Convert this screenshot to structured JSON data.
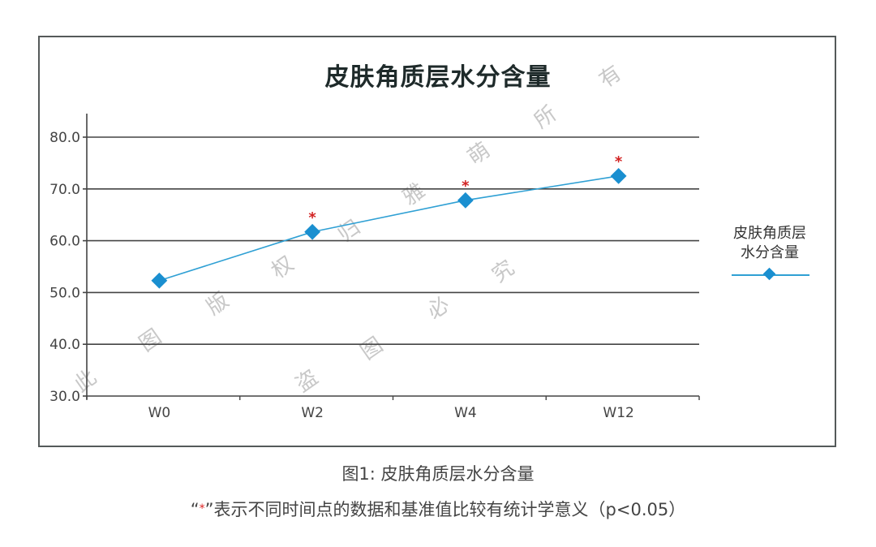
{
  "chart_data": {
    "type": "line",
    "title": "皮肤角质层水分含量",
    "categories": [
      "W0",
      "W2",
      "W4",
      "W12"
    ],
    "series": [
      {
        "name": "皮肤角质层水分含量",
        "values": [
          52.3,
          61.7,
          67.8,
          72.5
        ],
        "color": "#1a8fd0",
        "marker": "diamond",
        "significant": [
          false,
          true,
          true,
          true
        ]
      }
    ],
    "xlabel": "",
    "ylabel": "",
    "ylim": [
      30.0,
      80.0
    ],
    "yticks": [
      "30.0",
      "40.0",
      "50.0",
      "60.0",
      "70.0",
      "80.0"
    ],
    "grid": true,
    "legend_position": "right",
    "significance_marker": "*",
    "significance_color": "#d22222"
  },
  "legend": {
    "line1": "皮肤角质层",
    "line2": "水分含量"
  },
  "caption": "图1: 皮肤角质层水分含量",
  "note": {
    "open_quote": "“",
    "star": "*",
    "close_quote": "”",
    "text": "表示不同时间点的数据和基准值比较有统计学意义（p<0.05）"
  },
  "watermark": {
    "line1": [
      "此",
      "图",
      "版",
      "权",
      "归",
      "雅",
      "萌",
      "所",
      "有"
    ],
    "line2": [
      "盗",
      "图",
      "必",
      "究"
    ]
  },
  "colors": {
    "line": "#2fa0d4",
    "marker": "#1a8fd0",
    "grid": "#444444",
    "star": "#d22222"
  }
}
